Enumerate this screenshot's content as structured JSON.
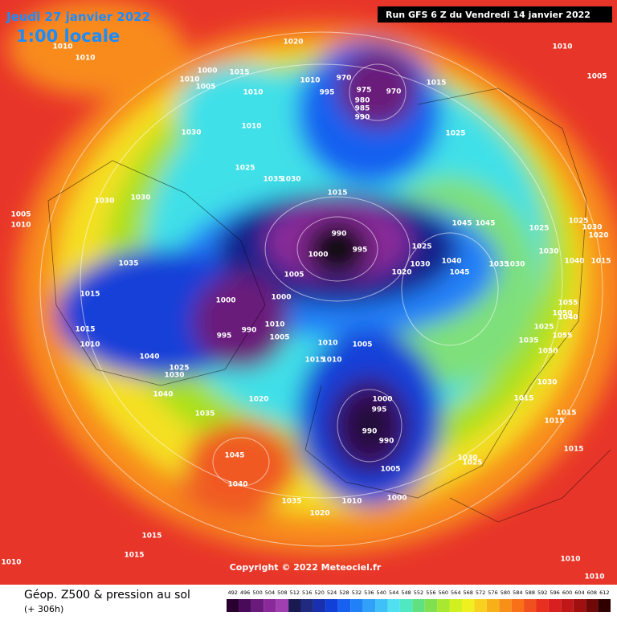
{
  "header": {
    "valid_date": "Jeudi 27 janvier 2022",
    "local_time": "1:00 locale",
    "run": "Run GFS 6 Z du Vendredi 14 janvier 2022"
  },
  "copyright": "Copyright © 2022 Meteociel.fr",
  "footer": {
    "title": "Géop. Z500 & pression au sol",
    "lead": "(+ 306h)"
  },
  "isobar_labels": [
    "1010",
    "1010",
    "1020",
    "1010",
    "1005",
    "1000",
    "1015",
    "1010",
    "1005",
    "1010",
    "970",
    "975",
    "970",
    "980",
    "985",
    "990",
    "995",
    "1015",
    "1010",
    "1010",
    "1030",
    "1025",
    "1025",
    "1035",
    "1030",
    "1015",
    "1030",
    "1030",
    "1005",
    "1010",
    "1045",
    "1045",
    "1025",
    "1025",
    "1030",
    "1020",
    "990",
    "995",
    "1000",
    "1025",
    "1030",
    "1040",
    "1035",
    "1030",
    "1040",
    "1015",
    "1030",
    "1020",
    "1045",
    "1005",
    "1035",
    "1015",
    "1000",
    "1000",
    "1055",
    "1050",
    "1040",
    "1025",
    "1055",
    "1010",
    "995",
    "990",
    "1005",
    "1015",
    "1010",
    "1010",
    "1005",
    "1035",
    "1050",
    "1040",
    "1015",
    "1010",
    "1025",
    "1030",
    "1030",
    "1040",
    "1020",
    "1000",
    "1015",
    "995",
    "1015",
    "1015",
    "1035",
    "990",
    "990",
    "1015",
    "1030",
    "1025",
    "1005",
    "1045",
    "1040",
    "1035",
    "1010",
    "1000",
    "1020",
    "1015",
    "1015",
    "1010",
    "1010",
    "1010"
  ],
  "legend": {
    "values": [
      492,
      496,
      500,
      504,
      508,
      512,
      516,
      520,
      524,
      528,
      532,
      536,
      540,
      544,
      548,
      552,
      556,
      560,
      564,
      568,
      572,
      576,
      580,
      584,
      588,
      592,
      596,
      600,
      604,
      608,
      612
    ],
    "colors": [
      "#2a0030",
      "#4a0a5a",
      "#6a1a7a",
      "#8a2a9a",
      "#a040b0",
      "#1a1a50",
      "#202a80",
      "#1830b0",
      "#1040d8",
      "#1860f0",
      "#2080f8",
      "#30a0f8",
      "#40c0f8",
      "#50e0f0",
      "#50e8c0",
      "#60e080",
      "#80e050",
      "#a8e830",
      "#d0f020",
      "#f0f020",
      "#f8d020",
      "#f8b018",
      "#f89018",
      "#f87018",
      "#f05020",
      "#e83020",
      "#d82020",
      "#c01818",
      "#a01010",
      "#700808",
      "#300000"
    ]
  }
}
